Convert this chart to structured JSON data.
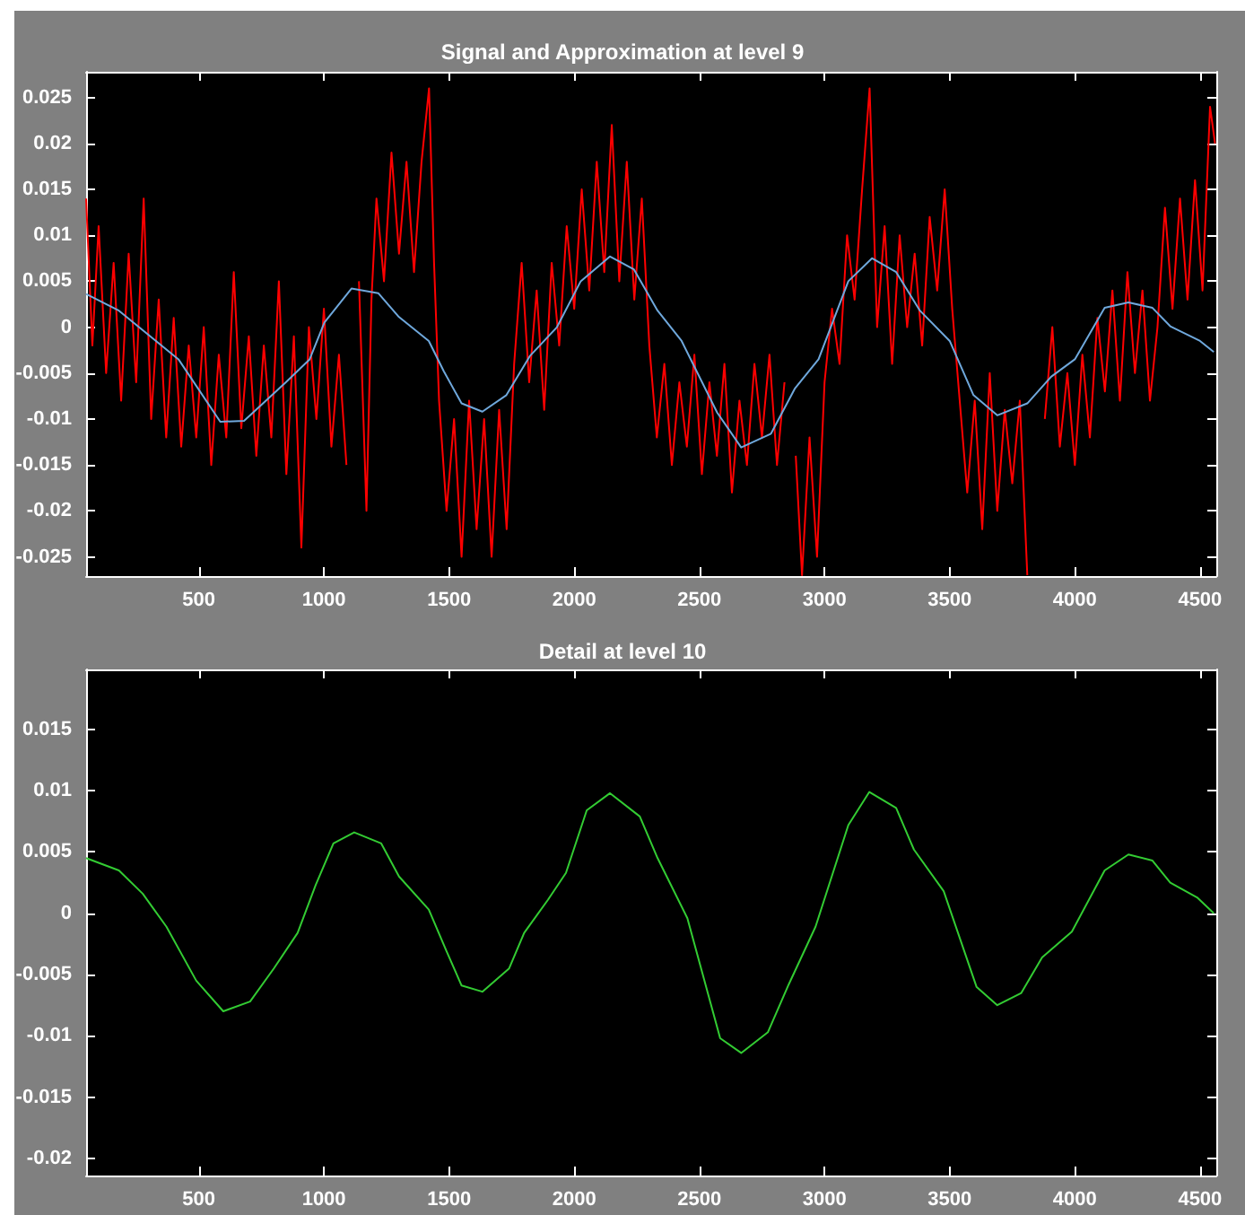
{
  "chart_data": [
    {
      "type": "line",
      "title": "Signal and Approximation at level 9",
      "xlim": [
        50,
        4565
      ],
      "xticks": [
        500,
        1000,
        1500,
        2000,
        2500,
        3000,
        3500,
        4000,
        4500
      ],
      "ylim": [
        -0.0271,
        0.0278
      ],
      "yticks": [
        -0.025,
        -0.02,
        -0.015,
        -0.01,
        -0.005,
        0,
        0.005,
        0.01,
        0.015,
        0.02,
        0.025
      ],
      "grid": false,
      "marker": "none",
      "line_style": "solid",
      "series": [
        {
          "color": "#ff0000",
          "x": [
            50,
            75,
            100,
            130,
            160,
            190,
            220,
            250,
            280,
            310,
            340,
            370,
            400,
            430,
            460,
            490,
            520,
            550,
            580,
            610,
            640,
            670,
            700,
            730,
            760,
            790,
            820,
            850,
            880,
            910,
            940,
            970,
            1000,
            1030,
            1060,
            1090,
            1110,
            1115,
            1140,
            1170,
            1190,
            1210,
            1240,
            1270,
            1300,
            1330,
            1360,
            1390,
            1420,
            1440,
            1460,
            1490,
            1520,
            1550,
            1580,
            1610,
            1640,
            1670,
            1700,
            1730,
            1760,
            1790,
            1820,
            1850,
            1880,
            1910,
            1940,
            1970,
            2000,
            2030,
            2060,
            2090,
            2120,
            2150,
            2180,
            2210,
            2240,
            2270,
            2300,
            2330,
            2360,
            2390,
            2420,
            2450,
            2480,
            2510,
            2540,
            2570,
            2600,
            2630,
            2660,
            2690,
            2720,
            2750,
            2780,
            2810,
            2840,
            2870,
            2885,
            2910,
            2940,
            2970,
            3000,
            3030,
            3060,
            3090,
            3120,
            3150,
            3180,
            3210,
            3240,
            3270,
            3300,
            3330,
            3360,
            3390,
            3420,
            3450,
            3480,
            3510,
            3540,
            3570,
            3600,
            3630,
            3660,
            3690,
            3720,
            3750,
            3780,
            3810,
            3840,
            3865,
            3880,
            3910,
            3940,
            3970,
            4000,
            4030,
            4060,
            4090,
            4120,
            4150,
            4180,
            4210,
            4240,
            4270,
            4300,
            4330,
            4360,
            4390,
            4420,
            4450,
            4480,
            4510,
            4540,
            4560
          ],
          "values": [
            0.014,
            -0.002,
            0.011,
            -0.005,
            0.007,
            -0.008,
            0.008,
            -0.006,
            0.014,
            -0.01,
            0.003,
            -0.012,
            0.001,
            -0.013,
            -0.002,
            -0.012,
            0,
            -0.015,
            -0.003,
            -0.012,
            0.006,
            -0.011,
            -0.001,
            -0.014,
            -0.002,
            -0.012,
            0.005,
            -0.016,
            -0.001,
            -0.024,
            0,
            -0.01,
            0.002,
            -0.013,
            -0.003,
            -0.015,
            null,
            null,
            0.005,
            -0.02,
            0.003,
            0.014,
            0.005,
            0.019,
            0.008,
            0.018,
            0.006,
            0.018,
            0.026,
            0.007,
            -0.008,
            -0.02,
            -0.01,
            -0.025,
            -0.008,
            -0.022,
            -0.01,
            -0.025,
            -0.009,
            -0.022,
            -0.004,
            0.007,
            -0.006,
            0.004,
            -0.009,
            0.007,
            -0.002,
            0.011,
            0.002,
            0.015,
            0.004,
            0.018,
            0.006,
            0.022,
            0.005,
            0.018,
            0.003,
            0.014,
            -0.002,
            -0.012,
            -0.004,
            -0.015,
            -0.006,
            -0.013,
            -0.003,
            -0.016,
            -0.006,
            -0.014,
            -0.004,
            -0.018,
            -0.008,
            -0.015,
            -0.004,
            -0.012,
            -0.003,
            -0.015,
            -0.006,
            null,
            -0.014,
            -0.027,
            -0.012,
            -0.025,
            -0.006,
            0.002,
            -0.004,
            0.01,
            0.003,
            0.015,
            0.026,
            0,
            0.011,
            -0.004,
            0.01,
            0,
            0.008,
            -0.002,
            0.012,
            0.004,
            0.015,
            0.002,
            -0.008,
            -0.018,
            -0.008,
            -0.022,
            -0.005,
            -0.02,
            -0.009,
            -0.017,
            -0.008,
            -0.027,
            null,
            null,
            -0.01,
            0,
            -0.013,
            -0.005,
            -0.015,
            -0.003,
            -0.012,
            0.001,
            -0.007,
            0.004,
            -0.008,
            0.006,
            -0.005,
            0.004,
            -0.008,
            0,
            0.013,
            0.002,
            0.014,
            0.003,
            0.016,
            0.004,
            0.024,
            0.02
          ]
        },
        {
          "color": "#6fa8dc",
          "x": [
            50,
            181,
            419,
            586,
            681,
            848,
            943,
            1002,
            1110,
            1217,
            1300,
            1419,
            1479,
            1550,
            1633,
            1729,
            1824,
            1931,
            2026,
            2143,
            2238,
            2333,
            2429,
            2571,
            2667,
            2786,
            2881,
            2976,
            3095,
            3190,
            3286,
            3381,
            3500,
            3595,
            3690,
            3810,
            3905,
            4000,
            4119,
            4214,
            4310,
            4381,
            4500,
            4555
          ],
          "values": [
            0.0036,
            0.0018,
            -0.0035,
            -0.0103,
            -0.0102,
            -0.006,
            -0.0035,
            0.0005,
            0.0042,
            0.0037,
            0.0011,
            -0.0015,
            -0.0048,
            -0.0083,
            -0.0092,
            -0.0074,
            -0.0031,
            0,
            0.005,
            0.0077,
            0.0063,
            0.0018,
            -0.0015,
            -0.0093,
            -0.0131,
            -0.0116,
            -0.0067,
            -0.0035,
            0.005,
            0.0075,
            0.006,
            0.0018,
            -0.0015,
            -0.0074,
            -0.0096,
            -0.0083,
            -0.0054,
            -0.0035,
            0.0021,
            0.0027,
            0.0021,
            0.0001,
            -0.0015,
            -0.0027
          ]
        }
      ]
    },
    {
      "type": "line",
      "title": "Detail at level 10",
      "xlim": [
        50,
        4565
      ],
      "xticks": [
        500,
        1000,
        1500,
        2000,
        2500,
        3000,
        3500,
        4000,
        4500
      ],
      "ylim": [
        -0.0214,
        0.0199
      ],
      "yticks": [
        -0.02,
        -0.015,
        -0.01,
        -0.005,
        0,
        0.005,
        0.01,
        0.015
      ],
      "grid": false,
      "marker": "none",
      "line_style": "solid",
      "series": [
        {
          "color": "#33cc33",
          "x": [
            50,
            181,
            276,
            371,
            490,
            598,
            705,
            800,
            895,
            967,
            1038,
            1121,
            1229,
            1300,
            1419,
            1490,
            1550,
            1633,
            1740,
            1800,
            1895,
            1967,
            2050,
            2143,
            2262,
            2333,
            2452,
            2583,
            2667,
            2774,
            2857,
            2964,
            3095,
            3179,
            3286,
            3357,
            3476,
            3607,
            3690,
            3786,
            3869,
            3988,
            4119,
            4214,
            4310,
            4381,
            4488,
            4555
          ],
          "values": [
            0.0045,
            0.0035,
            0.0016,
            -0.0011,
            -0.0055,
            -0.008,
            -0.0072,
            -0.0045,
            -0.0016,
            0.0023,
            0.0057,
            0.0066,
            0.0057,
            0.003,
            0.0003,
            -0.0031,
            -0.0059,
            -0.0064,
            -0.0045,
            -0.0016,
            0.0011,
            0.0033,
            0.0084,
            0.0098,
            0.0079,
            0.0045,
            -0.0004,
            -0.0102,
            -0.0114,
            -0.0097,
            -0.0058,
            -0.0011,
            0.0072,
            0.0099,
            0.0086,
            0.0052,
            0.0018,
            -0.006,
            -0.0075,
            -0.0065,
            -0.0036,
            -0.0015,
            0.0035,
            0.0048,
            0.0043,
            0.0025,
            0.0013,
            0
          ]
        }
      ]
    }
  ]
}
